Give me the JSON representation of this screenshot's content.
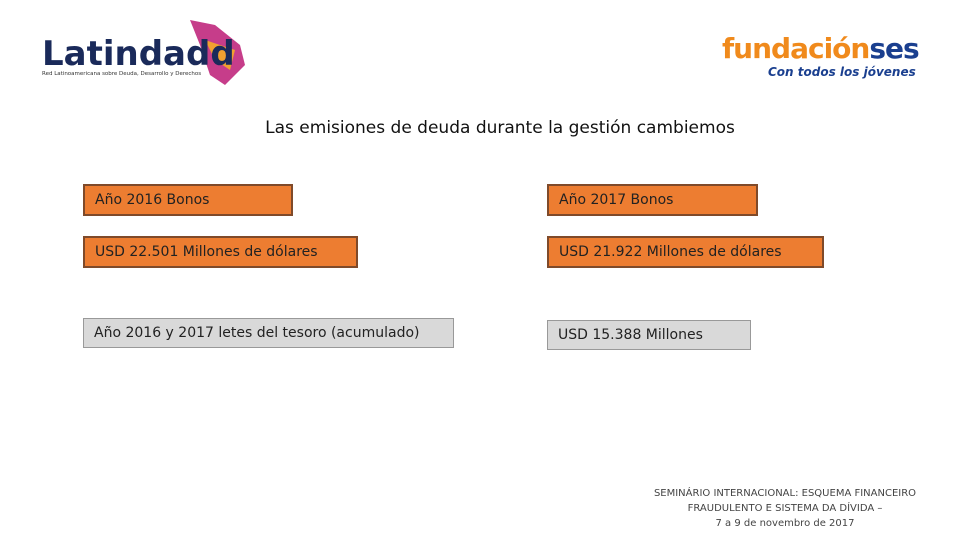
{
  "header": {
    "left_logo": "Latindadd",
    "left_logo_subtitle": "Red Latinoamericana sobre Deuda, Desarrollo y Derechos",
    "right_logo_a": "fundación",
    "right_logo_b": "ses",
    "right_logo_subtitle": "Con todos los jóvenes"
  },
  "title": "Las emisiones de deuda durante la gestión cambiemos",
  "boxes": [
    "Año 2016 Bonos",
    "Año 2017 Bonos",
    "USD 22.501 Millones de dólares",
    "USD 21.922 Millones de dólares",
    "Año 2016 y  2017 letes del tesoro (acumulado)",
    "USD 15.388 Millones"
  ],
  "footer": [
    "SEMINÁRIO INTERNACIONAL: ESQUEMA FINANCEIRO",
    "FRAUDULENTO E SISTEMA DA DÍVIDA –",
    "7 a 9 de novembro de 2017"
  ]
}
